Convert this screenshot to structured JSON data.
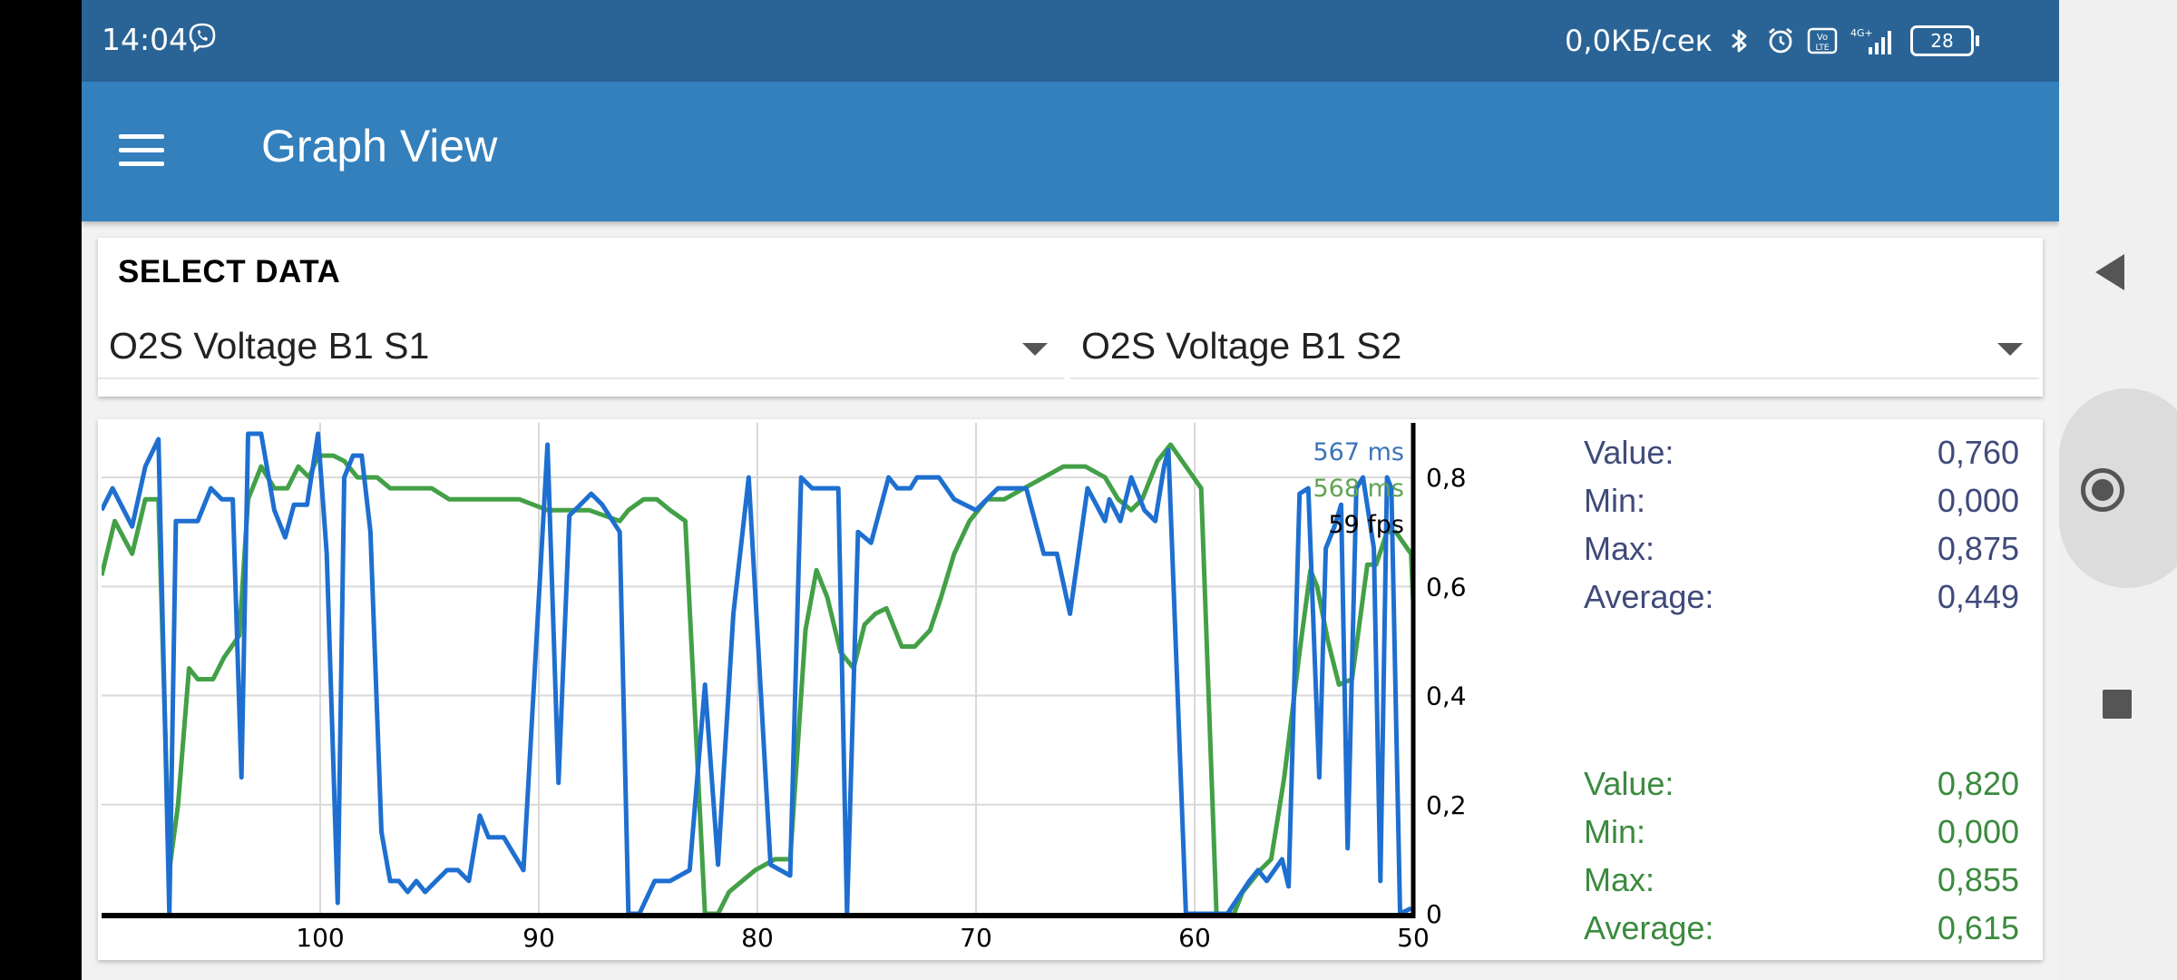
{
  "status": {
    "time": "14:04",
    "net_speed": "0,0КБ/сек",
    "battery": "28",
    "signal_label": "4G+",
    "volte_label": "Vo LTE"
  },
  "app": {
    "title": "Graph View"
  },
  "select": {
    "label": "SELECT DATA",
    "spinner1": "O2S Voltage B1 S1",
    "spinner2": "O2S Voltage B1 S2"
  },
  "overlay": {
    "timing1": "567 ms",
    "timing2": "568 ms",
    "fps": "59 fps"
  },
  "stats1": {
    "value_label": "Value:",
    "value": "0,760",
    "min_label": "Min:",
    "min": "0,000",
    "max_label": "Max:",
    "max": "0,875",
    "avg_label": "Average:",
    "avg": "0,449"
  },
  "stats2": {
    "value_label": "Value:",
    "value": "0,820",
    "min_label": "Min:",
    "min": "0,000",
    "max_label": "Max:",
    "max": "0,855",
    "avg_label": "Average:",
    "avg": "0,615"
  },
  "colors": {
    "series1": "#1e6fd0",
    "series2": "#43a047",
    "grid": "#d9d9d9",
    "axis": "#000000"
  },
  "chart_data": {
    "type": "line",
    "xlim": [
      110,
      50
    ],
    "ylim": [
      0,
      0.9
    ],
    "x_ticks": [
      100,
      90,
      80,
      70,
      60,
      50
    ],
    "x_tick_labels": [
      "100",
      "90",
      "80",
      "70",
      "60",
      "50"
    ],
    "y_ticks": [
      0,
      0.2,
      0.4,
      0.6,
      0.8
    ],
    "y_tick_labels": [
      "0",
      "0,2",
      "0,4",
      "0,6",
      "0,8"
    ],
    "grid": true,
    "series": [
      {
        "x": [
          110,
          109.5,
          108.6,
          108,
          107.4,
          106.9,
          106.6,
          106,
          105.6,
          105,
          104.5,
          104,
          103.6,
          103.3,
          102.7,
          102.1,
          101.6,
          101.2,
          100.6,
          100.1,
          99.7,
          99.2,
          98.9,
          98.5,
          98.1,
          97.7,
          97.2,
          96.8,
          96.4,
          96,
          95.6,
          95.2,
          94.7,
          94.2,
          93.7,
          93.2,
          92.7,
          92.3,
          91.6,
          90.7,
          89.6,
          89.1,
          88.6,
          88.1,
          87.6,
          87.1,
          86.3,
          85.9,
          85.4,
          84.7,
          84,
          83.1,
          82.4,
          81.8,
          81.1,
          80.4,
          79.4,
          78.5,
          78,
          77.5,
          76.9,
          76.3,
          75.9,
          75.4,
          74.8,
          74,
          73.6,
          73,
          72.7,
          72.1,
          71.7,
          71,
          70,
          69,
          67.7,
          66.9,
          66.3,
          65.7,
          64.9,
          64.1,
          63.9,
          63.4,
          62.9,
          62.3,
          61.8,
          61.4,
          61.2,
          60.4,
          59.7,
          58.5,
          57.5,
          57.1,
          56.7,
          56,
          55.7,
          55.2,
          54.8,
          54.3,
          54,
          53.6,
          53.3,
          53,
          52.6,
          52.3,
          51.8,
          51.5,
          51.2,
          51,
          50.6,
          50.1
        ],
        "y": [
          0.74,
          0.78,
          0.71,
          0.82,
          0.87,
          0,
          0.72,
          0.72,
          0.72,
          0.78,
          0.76,
          0.76,
          0.25,
          0.88,
          0.88,
          0.74,
          0.69,
          0.75,
          0.75,
          0.88,
          0.66,
          0.02,
          0.8,
          0.84,
          0.84,
          0.7,
          0.15,
          0.06,
          0.06,
          0.04,
          0.06,
          0.04,
          0.06,
          0.08,
          0.08,
          0.06,
          0.18,
          0.14,
          0.14,
          0.08,
          0.86,
          0.24,
          0.73,
          0.75,
          0.77,
          0.75,
          0.7,
          0,
          0,
          0.06,
          0.06,
          0.08,
          0.42,
          0.09,
          0.55,
          0.8,
          0.09,
          0.07,
          0.8,
          0.78,
          0.78,
          0.78,
          0,
          0.7,
          0.68,
          0.8,
          0.78,
          0.78,
          0.8,
          0.8,
          0.8,
          0.76,
          0.74,
          0.78,
          0.78,
          0.66,
          0.66,
          0.55,
          0.78,
          0.72,
          0.76,
          0.72,
          0.8,
          0.74,
          0.72,
          0.82,
          0.85,
          0,
          0,
          0,
          0.06,
          0.08,
          0.06,
          0.1,
          0.05,
          0.77,
          0.78,
          0.25,
          0.67,
          0.71,
          0.75,
          0.12,
          0.78,
          0.8,
          0.67,
          0.06,
          0.8,
          0.78,
          0,
          0.01
        ],
        "color": "#1e6fd0"
      },
      {
        "x": [
          110,
          109.4,
          108.6,
          108,
          107.4,
          106.9,
          106.5,
          106,
          105.6,
          104.9,
          104.4,
          103.7,
          103.3,
          102.7,
          102.1,
          101.5,
          101,
          100.5,
          100.1,
          99.4,
          98.9,
          98.3,
          97.9,
          97.4,
          96.8,
          95.8,
          94.9,
          94.1,
          93.4,
          92.6,
          91.7,
          90.9,
          89.6,
          88.6,
          87.7,
          86.3,
          85.9,
          85.2,
          84.6,
          84,
          83.3,
          82.4,
          81.8,
          81.3,
          80.7,
          80.1,
          79.2,
          78.5,
          77.8,
          77.3,
          76.8,
          76.2,
          75.6,
          75.1,
          74.6,
          74.1,
          73.4,
          72.8,
          72.1,
          71.6,
          71,
          70.3,
          69.5,
          68.7,
          67.8,
          66.9,
          66,
          65,
          64.1,
          63.5,
          62.9,
          62.4,
          61.7,
          61.1,
          60.4,
          59.7,
          59,
          58.6,
          58.2,
          57.8,
          57,
          56.5,
          55.9,
          55.2,
          54.7,
          54.4,
          53.9,
          53.4,
          52.8,
          52.1,
          51.7,
          51.2,
          50.8,
          50.1,
          49.7
        ],
        "y": [
          0.62,
          0.72,
          0.66,
          0.76,
          0.76,
          0.08,
          0.2,
          0.45,
          0.43,
          0.43,
          0.47,
          0.51,
          0.76,
          0.82,
          0.78,
          0.78,
          0.82,
          0.8,
          0.84,
          0.84,
          0.83,
          0.8,
          0.8,
          0.8,
          0.78,
          0.78,
          0.78,
          0.76,
          0.76,
          0.76,
          0.76,
          0.76,
          0.74,
          0.74,
          0.74,
          0.72,
          0.74,
          0.76,
          0.76,
          0.74,
          0.72,
          0,
          0,
          0.04,
          0.06,
          0.08,
          0.1,
          0.1,
          0.52,
          0.63,
          0.58,
          0.48,
          0.45,
          0.53,
          0.55,
          0.56,
          0.49,
          0.49,
          0.52,
          0.58,
          0.66,
          0.72,
          0.76,
          0.76,
          0.78,
          0.8,
          0.82,
          0.82,
          0.8,
          0.76,
          0.74,
          0.76,
          0.83,
          0.86,
          0.82,
          0.78,
          0,
          0,
          0,
          0.04,
          0.08,
          0.1,
          0.25,
          0.48,
          0.63,
          0.6,
          0.5,
          0.42,
          0.43,
          0.64,
          0.64,
          0.7,
          0.7,
          0.66,
          0.3
        ],
        "color": "#43a047"
      }
    ]
  }
}
